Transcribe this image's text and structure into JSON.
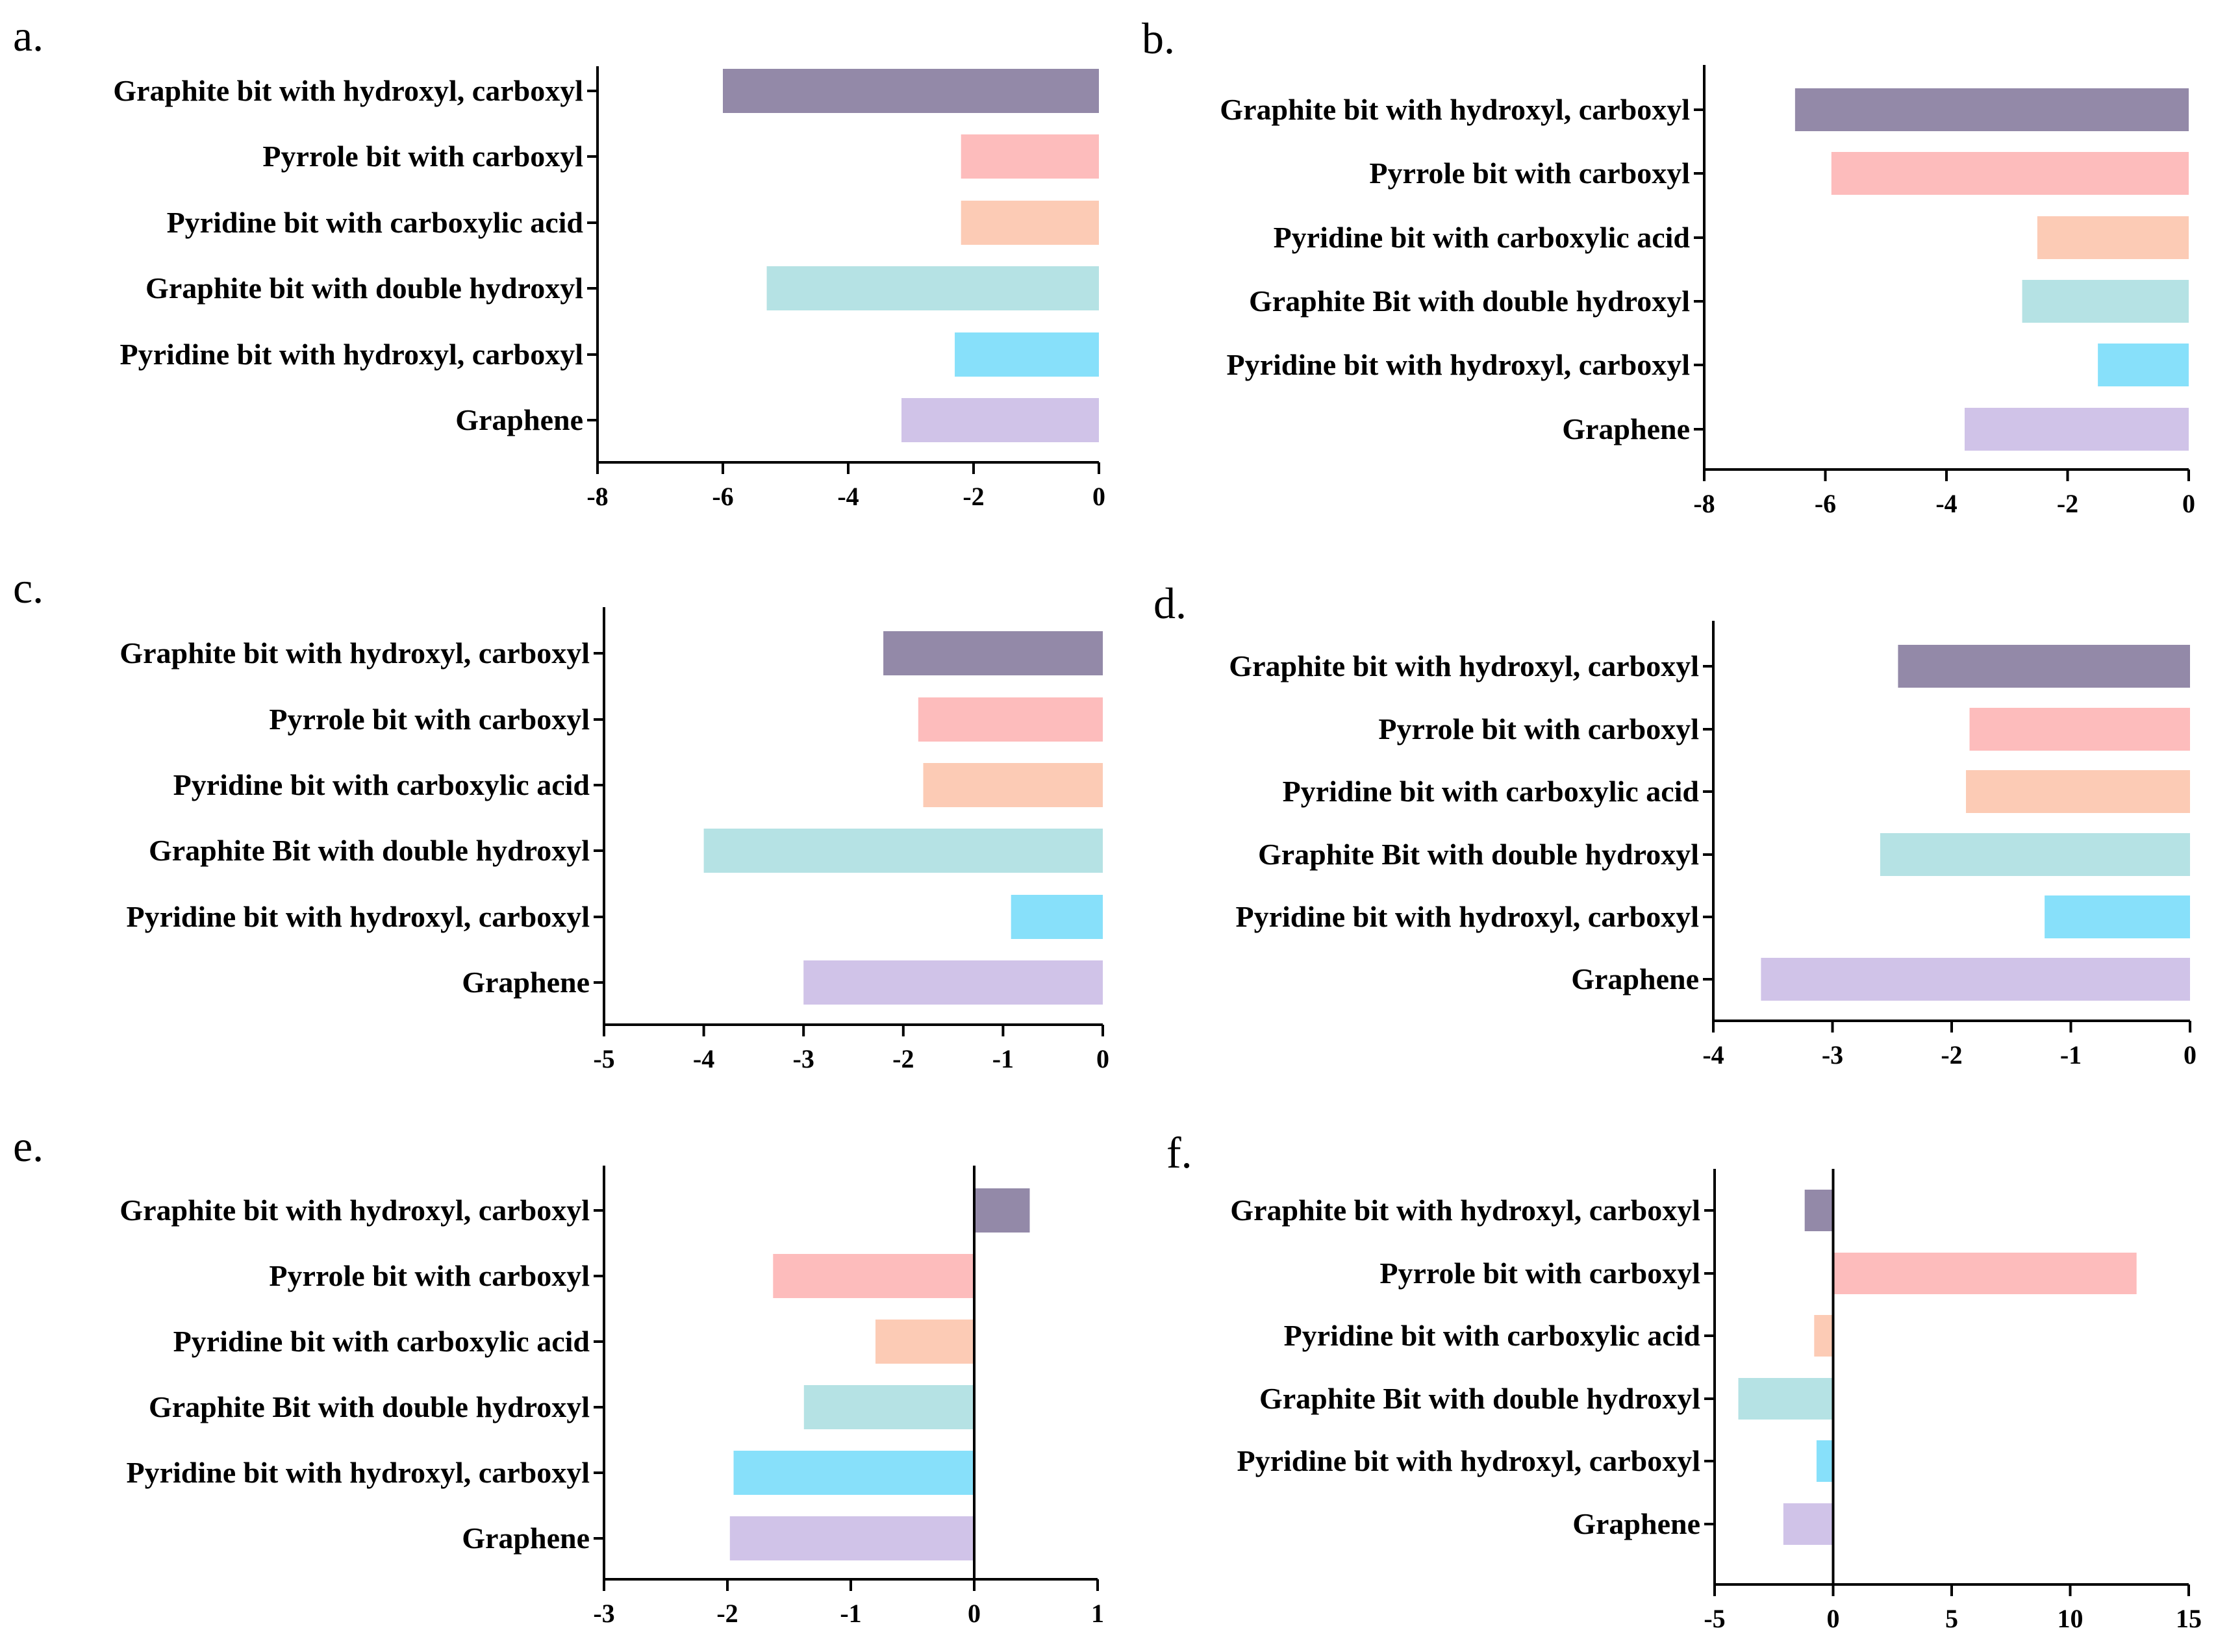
{
  "colors": {
    "graphite_hydroxyl_carboxyl": "#9389a8",
    "pyrrole_carboxyl": "#fdbcbc",
    "pyridine_carboxylic_acid": "#fccbb5",
    "graphite_double_hydroxyl": "#b5e2e4",
    "pyridine_hydroxyl_carboxyl": "#87e0fa",
    "graphene": "#d0c3e8"
  },
  "chart_data": [
    {
      "type": "bar",
      "orientation": "horizontal",
      "panel": "a.",
      "categories": [
        "Graphite bit with hydroxyl, carboxyl",
        "Pyrrole bit with carboxyl",
        "Pyridine bit with carboxylic acid",
        "Graphite bit with double hydroxyl",
        "Pyridine bit with hydroxyl, carboxyl",
        "Graphene"
      ],
      "values": [
        -6.0,
        -2.2,
        -2.2,
        -5.3,
        -2.3,
        -3.15
      ],
      "xlim": [
        -8,
        0
      ],
      "xticks": [
        -8,
        -6,
        -4,
        -2,
        0
      ],
      "xtick_labels": [
        "-8",
        "-6",
        "-4",
        "-2",
        "0"
      ],
      "xlabel": "",
      "ylabel": "",
      "grid": false
    },
    {
      "type": "bar",
      "orientation": "horizontal",
      "panel": "b.",
      "categories": [
        "Graphite bit with hydroxyl, carboxyl",
        "Pyrrole bit with carboxyl",
        "Pyridine bit with carboxylic acid",
        "Graphite Bit with double hydroxyl",
        "Pyridine bit with hydroxyl, carboxyl",
        "Graphene"
      ],
      "values": [
        -6.5,
        -5.9,
        -2.5,
        -2.75,
        -1.5,
        -3.7
      ],
      "xlim": [
        -8,
        0
      ],
      "xticks": [
        -8,
        -6,
        -4,
        -2,
        0
      ],
      "xtick_labels": [
        "-8",
        "-6",
        "-4",
        "-2",
        "0"
      ],
      "xlabel": "",
      "ylabel": "",
      "grid": false
    },
    {
      "type": "bar",
      "orientation": "horizontal",
      "panel": "c.",
      "categories": [
        "Graphite bit with hydroxyl, carboxyl",
        "Pyrrole bit with carboxyl",
        "Pyridine bit with carboxylic acid",
        "Graphite Bit with double hydroxyl",
        "Pyridine bit with hydroxyl, carboxyl",
        "Graphene"
      ],
      "values": [
        -2.2,
        -1.85,
        -1.8,
        -4.0,
        -0.92,
        -3.0
      ],
      "xlim": [
        -5,
        0
      ],
      "xticks": [
        -5,
        -4,
        -3,
        -2,
        -1,
        0
      ],
      "xtick_labels": [
        "-5",
        "-4",
        "-3",
        "-2",
        "-1",
        "0"
      ],
      "xlabel": "",
      "ylabel": "",
      "grid": false
    },
    {
      "type": "bar",
      "orientation": "horizontal",
      "panel": "d.",
      "categories": [
        "Graphite bit with hydroxyl, carboxyl",
        "Pyrrole bit with carboxyl",
        "Pyridine bit with carboxylic acid",
        "Graphite Bit with double hydroxyl",
        "Pyridine bit with hydroxyl, carboxyl",
        "Graphene"
      ],
      "values": [
        -2.45,
        -1.85,
        -1.88,
        -2.6,
        -1.22,
        -3.6
      ],
      "xlim": [
        -4,
        0
      ],
      "xticks": [
        -4,
        -3,
        -2,
        -1,
        0
      ],
      "xtick_labels": [
        "-4",
        "-3",
        "-2",
        "-1",
        "0"
      ],
      "xlabel": "",
      "ylabel": "",
      "grid": false
    },
    {
      "type": "bar",
      "orientation": "horizontal",
      "panel": "e.",
      "categories": [
        "Graphite bit with hydroxyl, carboxyl",
        "Pyrrole bit with carboxyl",
        "Pyridine bit with carboxylic acid",
        "Graphite Bit with double hydroxyl",
        "Pyridine bit with hydroxyl, carboxyl",
        "Graphene"
      ],
      "values": [
        0.45,
        -1.63,
        -0.8,
        -1.38,
        -1.95,
        -1.98
      ],
      "xlim": [
        -3,
        1
      ],
      "xticks": [
        -3,
        -2,
        -1,
        0,
        1
      ],
      "xtick_labels": [
        "-3",
        "-2",
        "-1",
        "0",
        "1"
      ],
      "xlabel": "",
      "ylabel": "",
      "grid": false
    },
    {
      "type": "bar",
      "orientation": "horizontal",
      "panel": "f.",
      "categories": [
        "Graphite bit with hydroxyl, carboxyl",
        "Pyrrole bit with carboxyl",
        "Pyridine bit with carboxylic acid",
        "Graphite Bit with double hydroxyl",
        "Pyridine bit with hydroxyl, carboxyl",
        "Graphene"
      ],
      "values": [
        -1.2,
        12.8,
        -0.8,
        -4.0,
        -0.7,
        -2.1
      ],
      "xlim": [
        -5,
        15
      ],
      "xticks": [
        -5,
        0,
        5,
        10,
        15
      ],
      "xtick_labels": [
        "-5",
        "0",
        "5",
        "10",
        "15"
      ],
      "xlabel": "",
      "ylabel": "",
      "grid": false
    }
  ]
}
